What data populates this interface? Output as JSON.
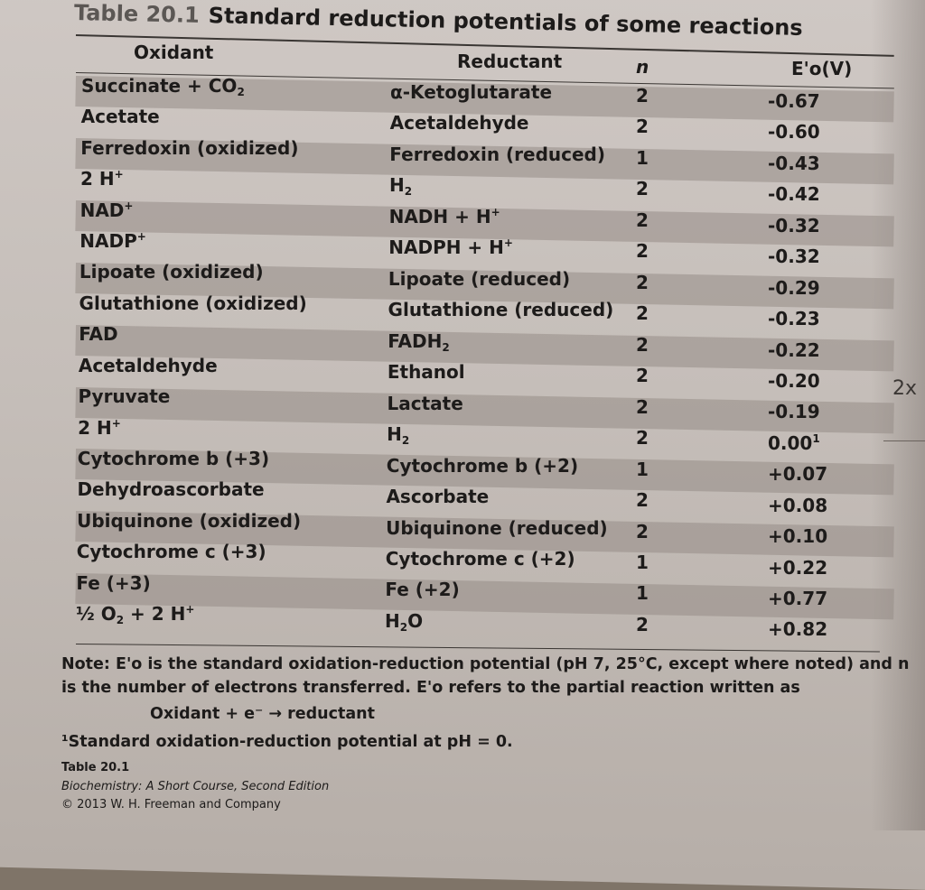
{
  "table_number": "Table 20.1",
  "title": "Standard reduction potentials of some reactions",
  "headers": {
    "oxidant": "Oxidant",
    "reductant": "Reductant",
    "n": "n",
    "potential": "E'o(V)"
  },
  "rows": [
    {
      "oxidant": "Succinate + CO",
      "ox_sub": "2",
      "ox_sup": "",
      "reductant": "α-Ketoglutarate",
      "red_sub": "",
      "red_sup": "",
      "red_tail": "",
      "n": "2",
      "e": "-0.67"
    },
    {
      "oxidant": "Acetate",
      "ox_sub": "",
      "ox_sup": "",
      "reductant": "Acetaldehyde",
      "red_sub": "",
      "red_sup": "",
      "red_tail": "",
      "n": "2",
      "e": "-0.60"
    },
    {
      "oxidant": "Ferredoxin (oxidized)",
      "ox_sub": "",
      "ox_sup": "",
      "reductant": "Ferredoxin (reduced)",
      "red_sub": "",
      "red_sup": "",
      "red_tail": "",
      "n": "1",
      "e": "-0.43"
    },
    {
      "oxidant": "2 H",
      "ox_sub": "",
      "ox_sup": "+",
      "reductant": "H",
      "red_sub": "2",
      "red_sup": "",
      "red_tail": "",
      "n": "2",
      "e": "-0.42"
    },
    {
      "oxidant": "NAD",
      "ox_sub": "",
      "ox_sup": "+",
      "reductant": "NADH + H",
      "red_sub": "",
      "red_sup": "+",
      "red_tail": "",
      "n": "2",
      "e": "-0.32"
    },
    {
      "oxidant": "NADP",
      "ox_sub": "",
      "ox_sup": "+",
      "reductant": "NADPH + H",
      "red_sub": "",
      "red_sup": "+",
      "red_tail": "",
      "n": "2",
      "e": "-0.32"
    },
    {
      "oxidant": "Lipoate (oxidized)",
      "ox_sub": "",
      "ox_sup": "",
      "reductant": "Lipoate (reduced)",
      "red_sub": "",
      "red_sup": "",
      "red_tail": "",
      "n": "2",
      "e": "-0.29"
    },
    {
      "oxidant": "Glutathione (oxidized)",
      "ox_sub": "",
      "ox_sup": "",
      "reductant": "Glutathione (reduced)",
      "red_sub": "",
      "red_sup": "",
      "red_tail": "",
      "n": "2",
      "e": "-0.23"
    },
    {
      "oxidant": "FAD",
      "ox_sub": "",
      "ox_sup": "",
      "reductant": "FADH",
      "red_sub": "2",
      "red_sup": "",
      "red_tail": "",
      "n": "2",
      "e": "-0.22"
    },
    {
      "oxidant": "Acetaldehyde",
      "ox_sub": "",
      "ox_sup": "",
      "reductant": "Ethanol",
      "red_sub": "",
      "red_sup": "",
      "red_tail": "",
      "n": "2",
      "e": "-0.20"
    },
    {
      "oxidant": "Pyruvate",
      "ox_sub": "",
      "ox_sup": "",
      "reductant": "Lactate",
      "red_sub": "",
      "red_sup": "",
      "red_tail": "",
      "n": "2",
      "e": "-0.19"
    },
    {
      "oxidant": "2 H",
      "ox_sub": "",
      "ox_sup": "+",
      "reductant": "H",
      "red_sub": "2",
      "red_sup": "",
      "red_tail": "",
      "n": "2",
      "e": "0.00",
      "e_sup": "1"
    },
    {
      "oxidant": "Cytochrome b (+3)",
      "ox_sub": "",
      "ox_sup": "",
      "reductant": "Cytochrome b (+2)",
      "red_sub": "",
      "red_sup": "",
      "red_tail": "",
      "n": "1",
      "e": "+0.07"
    },
    {
      "oxidant": "Dehydroascorbate",
      "ox_sub": "",
      "ox_sup": "",
      "reductant": "Ascorbate",
      "red_sub": "",
      "red_sup": "",
      "red_tail": "",
      "n": "2",
      "e": "+0.08"
    },
    {
      "oxidant": "Ubiquinone (oxidized)",
      "ox_sub": "",
      "ox_sup": "",
      "reductant": "Ubiquinone (reduced)",
      "red_sub": "",
      "red_sup": "",
      "red_tail": "",
      "n": "2",
      "e": "+0.10"
    },
    {
      "oxidant": "Cytochrome c (+3)",
      "ox_sub": "",
      "ox_sup": "",
      "reductant": "Cytochrome c (+2)",
      "red_sub": "",
      "red_sup": "",
      "red_tail": "",
      "n": "1",
      "e": "+0.22"
    },
    {
      "oxidant": "Fe (+3)",
      "ox_sub": "",
      "ox_sup": "",
      "reductant": "Fe (+2)",
      "red_sub": "",
      "red_sup": "",
      "red_tail": "",
      "n": "1",
      "e": "+0.77"
    },
    {
      "oxidant": "½ O",
      "ox_sub": "2",
      "ox_sup": "",
      "ox_tail": " + 2 H",
      "ox_tail_sup": "+",
      "reductant": "H",
      "red_sub": "2",
      "red_sup": "",
      "red_tail": "O",
      "n": "2",
      "e": "+0.82"
    }
  ],
  "note": {
    "line1": "Note: E'o is the standard oxidation-reduction potential (pH 7, 25°C, except where noted) and n",
    "line2": "is the number of electrons transferred. E'o refers to the partial reaction written as",
    "equation": "Oxidant + e⁻ → reductant",
    "footnote": "¹Standard oxidation-reduction potential at pH = 0."
  },
  "credit": {
    "label": "Table 20.1",
    "book": "Biochemistry: A Short Course, Second Edition",
    "copyright": "© 2013 W. H. Freeman and Company"
  },
  "handwritten": {
    "margin": "2x"
  }
}
